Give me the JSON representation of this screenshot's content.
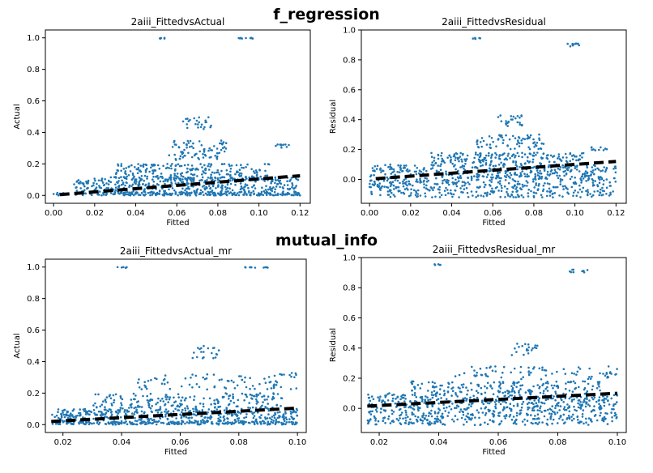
{
  "sections": [
    {
      "title": "f_regression"
    },
    {
      "title": "mutual_info"
    }
  ],
  "colors": {
    "points": "#1f77b4",
    "trend": "#000000"
  },
  "chart_data": [
    {
      "type": "scatter",
      "title": "2aiii_FittedvsActual",
      "xlabel": "Fitted",
      "ylabel": "Actual",
      "xlim": [
        -0.004,
        0.125
      ],
      "ylim": [
        -0.05,
        1.05
      ],
      "xticks": [
        0.0,
        0.02,
        0.04,
        0.06,
        0.08,
        0.1,
        0.12
      ],
      "yticks": [
        0.0,
        0.2,
        0.4,
        0.6,
        0.8,
        1.0
      ],
      "xtick_labels": [
        "0.00",
        "0.02",
        "0.04",
        "0.06",
        "0.08",
        "0.10",
        "0.12"
      ],
      "ytick_labels": [
        "0.0",
        "0.2",
        "0.4",
        "0.6",
        "0.8",
        "1.0"
      ],
      "trend_line": {
        "x": [
          0.003,
          0.12
        ],
        "y": [
          0.005,
          0.125
        ]
      },
      "clusters": [
        {
          "x": [
            0.0,
            0.12
          ],
          "y": [
            0.0,
            0.02
          ],
          "n": 260
        },
        {
          "x": [
            0.01,
            0.12
          ],
          "y": [
            0.02,
            0.12
          ],
          "n": 420
        },
        {
          "x": [
            0.03,
            0.105
          ],
          "y": [
            0.1,
            0.2
          ],
          "n": 220
        },
        {
          "x": [
            0.056,
            0.085
          ],
          "y": [
            0.22,
            0.35
          ],
          "n": 80
        },
        {
          "x": [
            0.062,
            0.078
          ],
          "y": [
            0.42,
            0.5
          ],
          "n": 24
        },
        {
          "x": [
            0.05,
            0.054
          ],
          "y": [
            0.995,
            1.0
          ],
          "n": 6
        },
        {
          "x": [
            0.09,
            0.098
          ],
          "y": [
            0.995,
            1.0
          ],
          "n": 10
        },
        {
          "x": [
            0.108,
            0.116
          ],
          "y": [
            0.3,
            0.33
          ],
          "n": 10
        }
      ]
    },
    {
      "type": "scatter",
      "title": "2aiii_FittedvsResidual",
      "xlabel": "Fitted",
      "ylabel": "Residual",
      "xlim": [
        -0.004,
        0.125
      ],
      "ylim": [
        -0.16,
        1.0
      ],
      "xticks": [
        0.0,
        0.02,
        0.04,
        0.06,
        0.08,
        0.1,
        0.12
      ],
      "yticks": [
        0.0,
        0.2,
        0.4,
        0.6,
        0.8,
        1.0
      ],
      "xtick_labels": [
        "0.00",
        "0.02",
        "0.04",
        "0.06",
        "0.08",
        "0.10",
        "0.12"
      ],
      "ytick_labels": [
        "0.0",
        "0.2",
        "0.4",
        "0.6",
        "0.8",
        "1.0"
      ],
      "trend_line": {
        "x": [
          0.003,
          0.12
        ],
        "y": [
          0.005,
          0.12
        ]
      },
      "clusters": [
        {
          "x": [
            0.0,
            0.12
          ],
          "y": [
            -0.12,
            0.0
          ],
          "n": 380
        },
        {
          "x": [
            0.0,
            0.12
          ],
          "y": [
            0.0,
            0.1
          ],
          "n": 360
        },
        {
          "x": [
            0.03,
            0.105
          ],
          "y": [
            0.1,
            0.18
          ],
          "n": 180
        },
        {
          "x": [
            0.052,
            0.085
          ],
          "y": [
            0.2,
            0.3
          ],
          "n": 70
        },
        {
          "x": [
            0.062,
            0.078
          ],
          "y": [
            0.35,
            0.43
          ],
          "n": 24
        },
        {
          "x": [
            0.05,
            0.054
          ],
          "y": [
            0.94,
            0.95
          ],
          "n": 6
        },
        {
          "x": [
            0.095,
            0.102
          ],
          "y": [
            0.89,
            0.91
          ],
          "n": 10
        },
        {
          "x": [
            0.108,
            0.116
          ],
          "y": [
            0.19,
            0.22
          ],
          "n": 10
        }
      ]
    },
    {
      "type": "scatter",
      "title": "2aiii_FittedvsActual_mr",
      "xlabel": "Fitted",
      "ylabel": "Actual",
      "xlim": [
        0.014,
        0.103
      ],
      "ylim": [
        -0.05,
        1.05
      ],
      "xticks": [
        0.02,
        0.04,
        0.06,
        0.08,
        0.1
      ],
      "yticks": [
        0.0,
        0.2,
        0.4,
        0.6,
        0.8,
        1.0
      ],
      "xtick_labels": [
        "0.02",
        "0.04",
        "0.06",
        "0.08",
        "0.10"
      ],
      "ytick_labels": [
        "0.0",
        "0.2",
        "0.4",
        "0.6",
        "0.8",
        "1.0"
      ],
      "trend_line": {
        "x": [
          0.016,
          0.1
        ],
        "y": [
          0.02,
          0.105
        ]
      },
      "clusters": [
        {
          "x": [
            0.016,
            0.1
          ],
          "y": [
            0.0,
            0.02
          ],
          "n": 240
        },
        {
          "x": [
            0.016,
            0.1
          ],
          "y": [
            0.02,
            0.1
          ],
          "n": 380
        },
        {
          "x": [
            0.03,
            0.095
          ],
          "y": [
            0.1,
            0.2
          ],
          "n": 200
        },
        {
          "x": [
            0.045,
            0.1
          ],
          "y": [
            0.22,
            0.32
          ],
          "n": 80
        },
        {
          "x": [
            0.064,
            0.074
          ],
          "y": [
            0.42,
            0.5
          ],
          "n": 20
        },
        {
          "x": [
            0.038,
            0.042
          ],
          "y": [
            0.995,
            1.0
          ],
          "n": 5
        },
        {
          "x": [
            0.082,
            0.09
          ],
          "y": [
            0.995,
            1.0
          ],
          "n": 10
        },
        {
          "x": [
            0.094,
            0.1
          ],
          "y": [
            0.31,
            0.33
          ],
          "n": 8
        }
      ]
    },
    {
      "type": "scatter",
      "title": "2aiii_FittedvsResidual_mr",
      "xlabel": "Fitted",
      "ylabel": "Residual",
      "xlim": [
        0.014,
        0.103
      ],
      "ylim": [
        -0.16,
        1.0
      ],
      "xticks": [
        0.02,
        0.04,
        0.06,
        0.08,
        0.1
      ],
      "yticks": [
        0.0,
        0.2,
        0.4,
        0.6,
        0.8,
        1.0
      ],
      "xtick_labels": [
        "0.02",
        "0.04",
        "0.06",
        "0.08",
        "0.10"
      ],
      "ytick_labels": [
        "0.0",
        "0.2",
        "0.4",
        "0.6",
        "0.8",
        "1.0"
      ],
      "trend_line": {
        "x": [
          0.016,
          0.1
        ],
        "y": [
          0.015,
          0.1
        ]
      },
      "clusters": [
        {
          "x": [
            0.016,
            0.1
          ],
          "y": [
            -0.11,
            0.0
          ],
          "n": 360
        },
        {
          "x": [
            0.016,
            0.1
          ],
          "y": [
            0.0,
            0.1
          ],
          "n": 340
        },
        {
          "x": [
            0.03,
            0.095
          ],
          "y": [
            0.1,
            0.18
          ],
          "n": 160
        },
        {
          "x": [
            0.045,
            0.1
          ],
          "y": [
            0.19,
            0.28
          ],
          "n": 70
        },
        {
          "x": [
            0.064,
            0.074
          ],
          "y": [
            0.35,
            0.43
          ],
          "n": 20
        },
        {
          "x": [
            0.038,
            0.042
          ],
          "y": [
            0.95,
            0.96
          ],
          "n": 5
        },
        {
          "x": [
            0.084,
            0.09
          ],
          "y": [
            0.9,
            0.92
          ],
          "n": 10
        },
        {
          "x": [
            0.094,
            0.1
          ],
          "y": [
            0.2,
            0.23
          ],
          "n": 8
        }
      ]
    }
  ]
}
